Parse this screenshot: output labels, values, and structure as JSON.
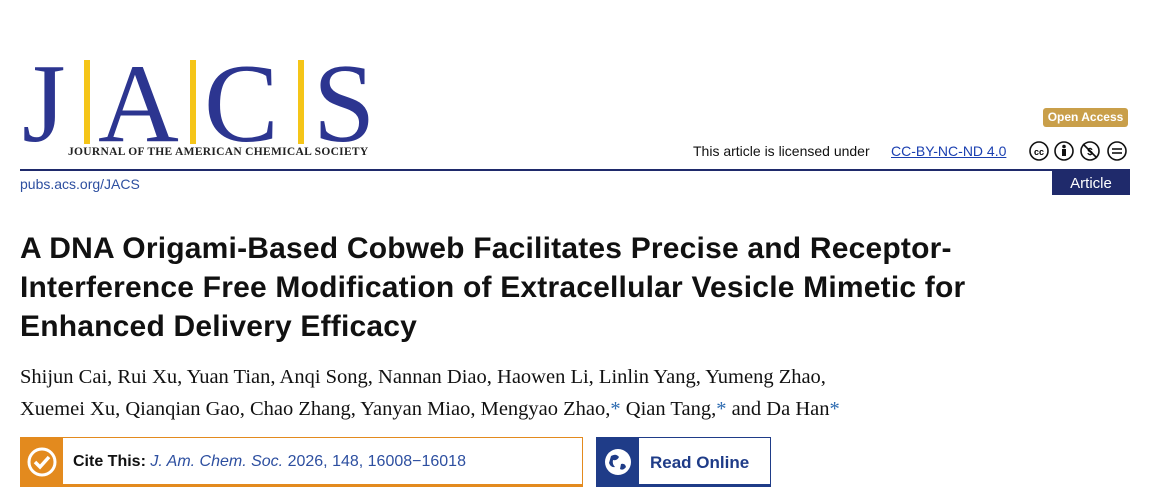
{
  "header": {
    "logo_letters": [
      "J",
      "A",
      "C",
      "S"
    ],
    "journal_name": "JOURNAL OF THE AMERICAN CHEMICAL SOCIETY",
    "open_access": "Open Access",
    "license_text": "This article is licensed under",
    "license_link": "CC-BY-NC-ND 4.0",
    "website": "pubs.acs.org/JACS",
    "article_type": "Article"
  },
  "title_lines": [
    "A DNA Origami-Based Cobweb Facilitates Precise and Receptor-",
    "Interference Free Modification of Extracellular Vesicle Mimetic for",
    "Enhanced Delivery Efficacy"
  ],
  "authors": {
    "line1": "Shijun Cai, Rui Xu, Yuan Tian, Anqi Song, Nannan Diao, Haowen Li, Linlin Yang, Yumeng Zhao,",
    "line2": [
      "Xuemei Xu, Qianqian Gao, Chao Zhang, Yanyan Miao, Mengyao Zhao,",
      "*",
      " Qian Tang,",
      "*",
      " and Da Han",
      "*"
    ]
  },
  "cite": {
    "label": "Cite This:",
    "journal": "J. Am. Chem. Soc.",
    "details": "2026, 148, 16008−16018"
  },
  "read_online": "Read Online"
}
